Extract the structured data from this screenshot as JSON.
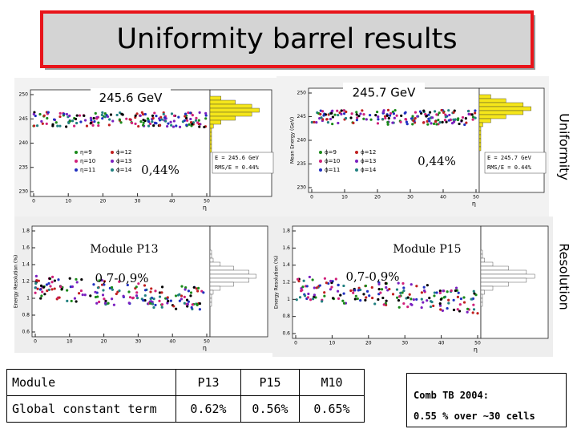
{
  "title": "Uniformity barrel results",
  "side_labels": [
    "Uniformity",
    "Resolution"
  ],
  "plots": [
    {
      "label": "245.6 GeV",
      "spread": "0,44%",
      "stats": [
        "E = 245.6 GeV",
        "RMS/E = 0.44%"
      ],
      "legend": [
        "η=9",
        "η=10",
        "η=11",
        "ϕ=12",
        "ϕ=13",
        "ϕ=14"
      ],
      "yticks": [
        "250",
        "245",
        "240",
        "235",
        "230"
      ],
      "xticks": [
        "0",
        "10",
        "20",
        "30",
        "40",
        "50"
      ],
      "xlabel": "η"
    },
    {
      "label": "245.7 GeV",
      "spread": "0,44%",
      "stats": [
        "E = 245.7 GeV",
        "RMS/E = 0.44%"
      ],
      "legend": [
        "ϕ=9",
        "ϕ=10",
        "ϕ=11",
        "ϕ=12",
        "ϕ=13",
        "ϕ=14"
      ],
      "ylabel": "Mean Energy (GeV)",
      "yticks": [
        "250",
        "245",
        "240",
        "235",
        "230"
      ],
      "xticks": [
        "0",
        "10",
        "20",
        "30",
        "40",
        "50"
      ],
      "xlabel": "η"
    },
    {
      "label": "Module P13",
      "spread": "0,7-0,9%",
      "ylabel": "Energy Resolution (%)",
      "yticks": [
        "1.8",
        "1.6",
        "1.4",
        "1.2",
        "1",
        "0.8",
        "0.6"
      ],
      "xticks": [
        "0",
        "10",
        "20",
        "30",
        "40",
        "50"
      ],
      "xlabel": "η"
    },
    {
      "label": "Module P15",
      "spread": "0,7-0,9%",
      "ylabel": "Energy Resolution (%)",
      "yticks": [
        "1.8",
        "1.6",
        "1.4",
        "1.2",
        "1",
        "0.8",
        "0.6"
      ],
      "xticks": [
        "0",
        "10",
        "20",
        "30",
        "40",
        "50"
      ],
      "xlabel": "η"
    }
  ],
  "table": {
    "header": [
      "Module",
      "P13",
      "P15",
      "M10"
    ],
    "rows": [
      [
        "Global constant term",
        "0.62%",
        "0.56%",
        "0.65%"
      ]
    ]
  },
  "note": [
    "Comb TB 2004:",
    "0.55 % over ~30 cells"
  ]
}
